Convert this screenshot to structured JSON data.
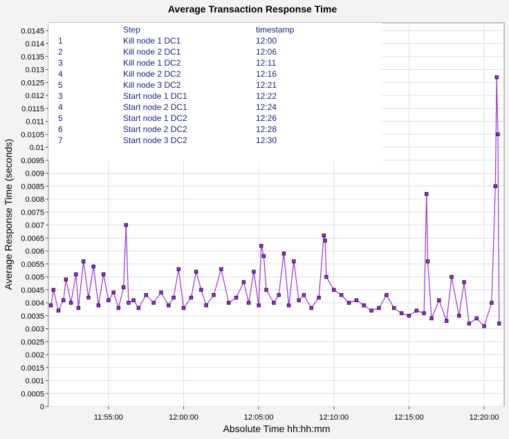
{
  "chart_data": {
    "type": "scatter",
    "title": "Average Transaction Response Time",
    "xlabel": "Absolute Time hh:hh:mm",
    "ylabel": "Average Response Time (seconds)",
    "xlim": [
      "11:51:00",
      "12:21:20"
    ],
    "ylim": [
      0,
      0.0148
    ],
    "grid": true,
    "x_ticks": [
      "11:55:00",
      "12:00:00",
      "12:05:00",
      "12:10:00",
      "12:15:00",
      "12:20:00"
    ],
    "y_ticks": [
      "0",
      "0.0005",
      "0.001",
      "0.0015",
      "0.002",
      "0.0025",
      "0.003",
      "0.0035",
      "0.004",
      "0.0045",
      "0.005",
      "0.0055",
      "0.006",
      "0.0065",
      "0.007",
      "0.0075",
      "0.008",
      "0.0085",
      "0.009",
      "0.0095",
      "0.01",
      "0.0105",
      "0.011",
      "0.0115",
      "0.012",
      "0.0125",
      "0.013",
      "0.0135",
      "0.014",
      "0.0145"
    ],
    "series": [
      {
        "color": "#9b30e0",
        "marker_color": "#2a0a3a",
        "points": [
          [
            "11:51:10",
            0.0039
          ],
          [
            "11:51:20",
            0.0045
          ],
          [
            "11:51:40",
            0.0037
          ],
          [
            "11:52:00",
            0.0041
          ],
          [
            "11:52:10",
            0.0049
          ],
          [
            "11:52:30",
            0.004
          ],
          [
            "11:52:50",
            0.0051
          ],
          [
            "11:53:00",
            0.0038
          ],
          [
            "11:53:20",
            0.0056
          ],
          [
            "11:53:40",
            0.0042
          ],
          [
            "11:54:00",
            0.0054
          ],
          [
            "11:54:20",
            0.0039
          ],
          [
            "11:54:40",
            0.0051
          ],
          [
            "11:55:00",
            0.0041
          ],
          [
            "11:55:20",
            0.0044
          ],
          [
            "11:55:40",
            0.0038
          ],
          [
            "11:56:00",
            0.0046
          ],
          [
            "11:56:10",
            0.007
          ],
          [
            "11:56:20",
            0.004
          ],
          [
            "11:56:40",
            0.0041
          ],
          [
            "11:57:00",
            0.0038
          ],
          [
            "11:57:30",
            0.0043
          ],
          [
            "11:58:00",
            0.004
          ],
          [
            "11:58:30",
            0.0044
          ],
          [
            "11:59:00",
            0.0039
          ],
          [
            "11:59:20",
            0.0042
          ],
          [
            "11:59:40",
            0.0053
          ],
          [
            "12:00:00",
            0.0038
          ],
          [
            "12:00:30",
            0.0042
          ],
          [
            "12:00:50",
            0.0052
          ],
          [
            "12:01:10",
            0.0045
          ],
          [
            "12:01:30",
            0.0039
          ],
          [
            "12:02:00",
            0.0043
          ],
          [
            "12:02:30",
            0.0053
          ],
          [
            "12:03:00",
            0.004
          ],
          [
            "12:03:30",
            0.0042
          ],
          [
            "12:04:00",
            0.0048
          ],
          [
            "12:04:20",
            0.004
          ],
          [
            "12:04:40",
            0.0052
          ],
          [
            "12:05:00",
            0.0039
          ],
          [
            "12:05:10",
            0.0062
          ],
          [
            "12:05:20",
            0.0058
          ],
          [
            "12:05:30",
            0.0045
          ],
          [
            "12:06:00",
            0.004
          ],
          [
            "12:06:20",
            0.0043
          ],
          [
            "12:06:40",
            0.0059
          ],
          [
            "12:07:00",
            0.0039
          ],
          [
            "12:07:20",
            0.0056
          ],
          [
            "12:07:40",
            0.0041
          ],
          [
            "12:08:00",
            0.0043
          ],
          [
            "12:08:30",
            0.0038
          ],
          [
            "12:09:00",
            0.0042
          ],
          [
            "12:09:20",
            0.0066
          ],
          [
            "12:09:25",
            0.0064
          ],
          [
            "12:09:30",
            0.005
          ],
          [
            "12:10:00",
            0.0045
          ],
          [
            "12:10:30",
            0.0043
          ],
          [
            "12:11:00",
            0.004
          ],
          [
            "12:11:30",
            0.0041
          ],
          [
            "12:12:00",
            0.0039
          ],
          [
            "12:12:30",
            0.0037
          ],
          [
            "12:13:00",
            0.0038
          ],
          [
            "12:13:30",
            0.0043
          ],
          [
            "12:14:00",
            0.0038
          ],
          [
            "12:14:30",
            0.0036
          ],
          [
            "12:15:00",
            0.0035
          ],
          [
            "12:15:30",
            0.0037
          ],
          [
            "12:16:00",
            0.0036
          ],
          [
            "12:16:10",
            0.0082
          ],
          [
            "12:16:15",
            0.0056
          ],
          [
            "12:16:30",
            0.0034
          ],
          [
            "12:17:00",
            0.0041
          ],
          [
            "12:17:30",
            0.0033
          ],
          [
            "12:17:50",
            0.005
          ],
          [
            "12:18:20",
            0.0035
          ],
          [
            "12:18:40",
            0.0048
          ],
          [
            "12:19:00",
            0.0032
          ],
          [
            "12:19:30",
            0.0034
          ],
          [
            "12:20:00",
            0.0031
          ],
          [
            "12:20:30",
            0.004
          ],
          [
            "12:20:45",
            0.0085
          ],
          [
            "12:20:50",
            0.0127
          ],
          [
            "12:20:55",
            0.0105
          ],
          [
            "12:21:00",
            0.0032
          ]
        ]
      }
    ]
  },
  "legend_table": {
    "headers": [
      "Step",
      "timestamp"
    ],
    "rows": [
      [
        "1",
        "Kill node 1 DC1",
        "12:00"
      ],
      [
        "2",
        "Kill node 2 DC1",
        "12:06"
      ],
      [
        "3",
        "Kill node 1 DC2",
        "12:11"
      ],
      [
        "4",
        "Kill node 2 DC2",
        "12:16"
      ],
      [
        "5",
        "Kill node 3 DC2",
        "12:21"
      ],
      [
        "3",
        "Start node 1 DC1",
        "12:22"
      ],
      [
        "4",
        "Start node 2 DC1",
        "12:24"
      ],
      [
        "5",
        "Start node 1 DC2",
        "12:26"
      ],
      [
        "6",
        "Start node 2 DC2",
        "12:28"
      ],
      [
        "7",
        "Start node 3 DC2",
        "12:30"
      ]
    ]
  }
}
